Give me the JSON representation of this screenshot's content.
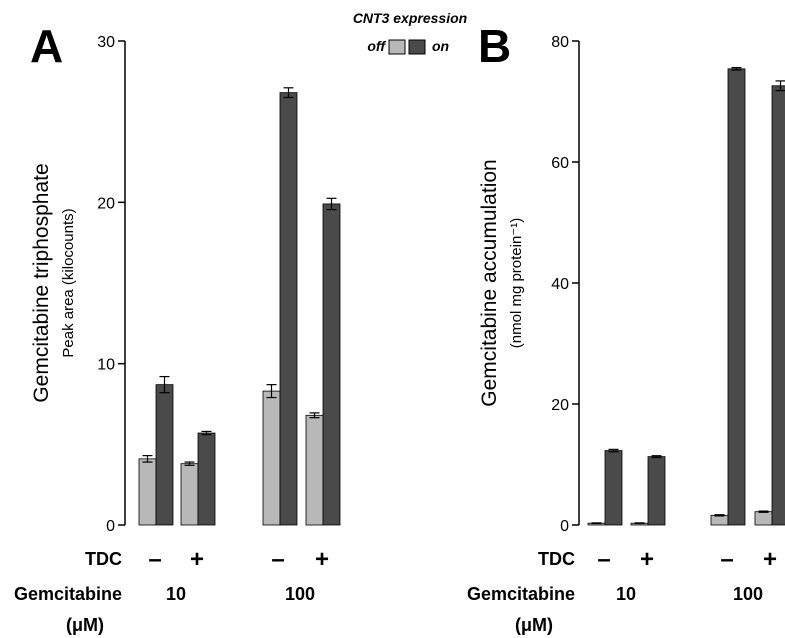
{
  "legend": {
    "title": "CNT3 expression",
    "entries": [
      {
        "label": "off",
        "color": "#b8b8b8"
      },
      {
        "label": "on",
        "color": "#4a4a4a"
      }
    ]
  },
  "x_labels": {
    "tdc_label": "TDC",
    "tdc_minus": "–",
    "tdc_plus": "+",
    "gem_label": "Gemcitabine",
    "gem_unit": "(μM)",
    "doses": [
      "10",
      "100"
    ]
  },
  "chart_data": [
    {
      "type": "bar",
      "panel": "A",
      "ylabel": "Gemcitabine triphosphate",
      "ysublabel": "Peak area (kilocounts)",
      "ylim": [
        0,
        30
      ],
      "yticks": [
        "0",
        "10",
        "20",
        "30"
      ],
      "tick_values": [
        0,
        10,
        20,
        30
      ],
      "groups": [
        {
          "dose": "10",
          "tdc": "–",
          "off": 4.1,
          "off_err": 0.2,
          "on": 8.7,
          "on_err": 0.5
        },
        {
          "dose": "10",
          "tdc": "+",
          "off": 3.8,
          "off_err": 0.1,
          "on": 5.7,
          "on_err": 0.1
        },
        {
          "dose": "100",
          "tdc": "–",
          "off": 8.3,
          "off_err": 0.4,
          "on": 26.8,
          "on_err": 0.3
        },
        {
          "dose": "100",
          "tdc": "+",
          "off": 6.8,
          "off_err": 0.15,
          "on": 19.9,
          "on_err": 0.35
        }
      ]
    },
    {
      "type": "bar",
      "panel": "B",
      "ylabel": "Gemcitabine accumulation",
      "ysublabel": "(nmol mg protein⁻¹)",
      "ylim": [
        0,
        80
      ],
      "yticks": [
        "0",
        "20",
        "40",
        "60",
        "80"
      ],
      "tick_values": [
        0,
        20,
        40,
        60,
        80
      ],
      "groups": [
        {
          "dose": "10",
          "tdc": "–",
          "off": 0.3,
          "off_err": 0.05,
          "on": 12.3,
          "on_err": 0.2
        },
        {
          "dose": "10",
          "tdc": "+",
          "off": 0.3,
          "off_err": 0.05,
          "on": 11.3,
          "on_err": 0.15
        },
        {
          "dose": "100",
          "tdc": "–",
          "off": 1.6,
          "off_err": 0.1,
          "on": 75.4,
          "on_err": 0.2
        },
        {
          "dose": "100",
          "tdc": "+",
          "off": 2.2,
          "off_err": 0.1,
          "on": 72.6,
          "on_err": 0.8
        }
      ]
    }
  ]
}
